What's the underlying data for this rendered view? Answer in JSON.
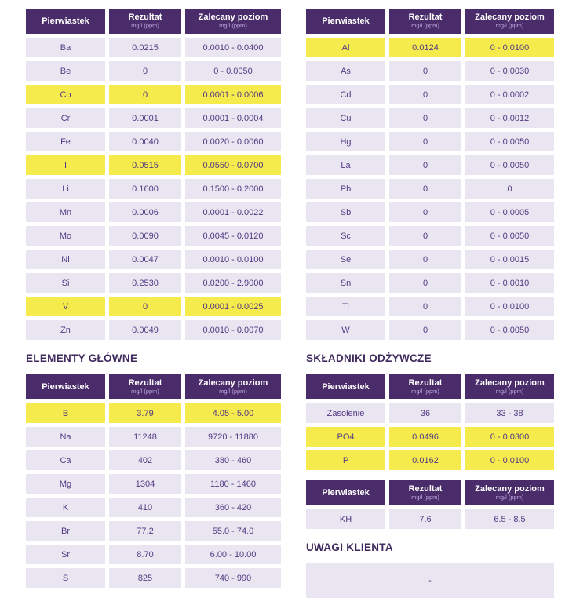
{
  "colors": {
    "header_bg": "#4A2C6A",
    "header_text": "#FFFFFF",
    "header_unit_text": "#BFA8DC",
    "row_bg": "#E9E6F2",
    "highlight_bg": "#F6EB4D",
    "cell_text": "#543A82",
    "section_title_text": "#3F2A5E"
  },
  "table_header": {
    "element": "Pierwiastek",
    "result": "Rezultat",
    "recommended": "Zalecany poziom",
    "unit": "mg/l (ppm)"
  },
  "sections": {
    "major_title": "ELEMENTY GŁÓWNE",
    "nutrients_title": "SKŁADNIKI ODŻYWCZE",
    "notes_title": "UWAGI KLIENTA",
    "notes_content": "-"
  },
  "tables": {
    "trace_left": {
      "rows": [
        {
          "element": "Ba",
          "result": "0.0215",
          "recommended": "0.0010 - 0.0400",
          "highlight": false
        },
        {
          "element": "Be",
          "result": "0",
          "recommended": "0 - 0.0050",
          "highlight": false
        },
        {
          "element": "Co",
          "result": "0",
          "recommended": "0.0001 - 0.0006",
          "highlight": true
        },
        {
          "element": "Cr",
          "result": "0.0001",
          "recommended": "0.0001 - 0.0004",
          "highlight": false
        },
        {
          "element": "Fe",
          "result": "0.0040",
          "recommended": "0.0020 - 0.0060",
          "highlight": false
        },
        {
          "element": "I",
          "result": "0.0515",
          "recommended": "0.0550 - 0.0700",
          "highlight": true
        },
        {
          "element": "Li",
          "result": "0.1600",
          "recommended": "0.1500 - 0.2000",
          "highlight": false
        },
        {
          "element": "Mn",
          "result": "0.0006",
          "recommended": "0.0001 - 0.0022",
          "highlight": false
        },
        {
          "element": "Mo",
          "result": "0.0090",
          "recommended": "0.0045 - 0.0120",
          "highlight": false
        },
        {
          "element": "Ni",
          "result": "0.0047",
          "recommended": "0.0010 - 0.0100",
          "highlight": false
        },
        {
          "element": "Si",
          "result": "0.2530",
          "recommended": "0.0200 - 2.9000",
          "highlight": false
        },
        {
          "element": "V",
          "result": "0",
          "recommended": "0.0001 - 0.0025",
          "highlight": true
        },
        {
          "element": "Zn",
          "result": "0.0049",
          "recommended": "0.0010 - 0.0070",
          "highlight": false
        }
      ]
    },
    "trace_right": {
      "rows": [
        {
          "element": "Al",
          "result": "0.0124",
          "recommended": "0 - 0.0100",
          "highlight": true
        },
        {
          "element": "As",
          "result": "0",
          "recommended": "0 - 0.0030",
          "highlight": false
        },
        {
          "element": "Cd",
          "result": "0",
          "recommended": "0 - 0.0002",
          "highlight": false
        },
        {
          "element": "Cu",
          "result": "0",
          "recommended": "0 - 0.0012",
          "highlight": false
        },
        {
          "element": "Hg",
          "result": "0",
          "recommended": "0 - 0.0050",
          "highlight": false
        },
        {
          "element": "La",
          "result": "0",
          "recommended": "0 - 0.0050",
          "highlight": false
        },
        {
          "element": "Pb",
          "result": "0",
          "recommended": "0",
          "highlight": false
        },
        {
          "element": "Sb",
          "result": "0",
          "recommended": "0 - 0.0005",
          "highlight": false
        },
        {
          "element": "Sc",
          "result": "0",
          "recommended": "0 - 0.0050",
          "highlight": false
        },
        {
          "element": "Se",
          "result": "0",
          "recommended": "0 - 0.0015",
          "highlight": false
        },
        {
          "element": "Sn",
          "result": "0",
          "recommended": "0 - 0.0010",
          "highlight": false
        },
        {
          "element": "Ti",
          "result": "0",
          "recommended": "0 - 0.0100",
          "highlight": false
        },
        {
          "element": "W",
          "result": "0",
          "recommended": "0 - 0.0050",
          "highlight": false
        }
      ]
    },
    "major": {
      "rows": [
        {
          "element": "B",
          "result": "3.79",
          "recommended": "4.05 - 5.00",
          "highlight": true
        },
        {
          "element": "Na",
          "result": "11248",
          "recommended": "9720 - 11880",
          "highlight": false
        },
        {
          "element": "Ca",
          "result": "402",
          "recommended": "380 - 460",
          "highlight": false
        },
        {
          "element": "Mg",
          "result": "1304",
          "recommended": "1180 - 1460",
          "highlight": false
        },
        {
          "element": "K",
          "result": "410",
          "recommended": "360 - 420",
          "highlight": false
        },
        {
          "element": "Br",
          "result": "77.2",
          "recommended": "55.0 - 74.0",
          "highlight": false
        },
        {
          "element": "Sr",
          "result": "8.70",
          "recommended": "6.00 - 10.00",
          "highlight": false
        },
        {
          "element": "S",
          "result": "825",
          "recommended": "740 - 990",
          "highlight": false
        }
      ]
    },
    "nutrients": {
      "rows": [
        {
          "element": "Zasolenie",
          "result": "36",
          "recommended": "33 - 38",
          "highlight": false
        },
        {
          "element": "PO4",
          "result": "0.0496",
          "recommended": "0 - 0.0300",
          "highlight": true
        },
        {
          "element": "P",
          "result": "0.0162",
          "recommended": "0 - 0.0100",
          "highlight": true
        }
      ]
    },
    "kh": {
      "rows": [
        {
          "element": "KH",
          "result": "7.6",
          "recommended": "6.5 - 8.5",
          "highlight": false
        }
      ]
    }
  }
}
